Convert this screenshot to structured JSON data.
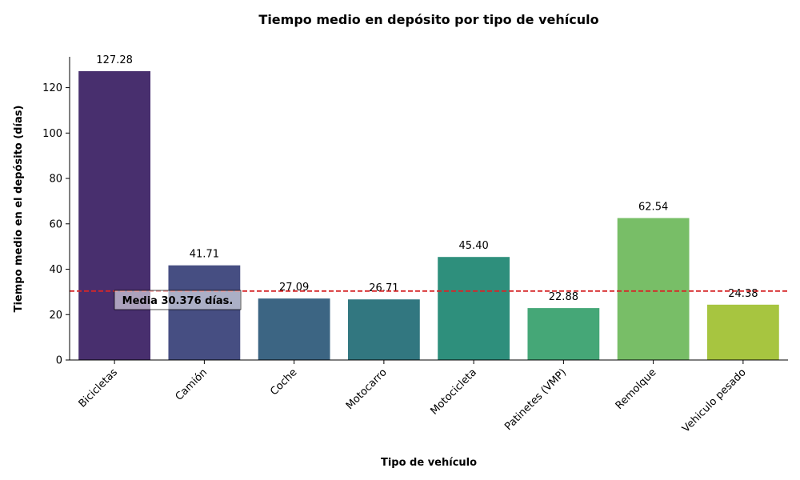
{
  "chart_data": {
    "type": "bar",
    "title": "Tiempo medio en depósito por tipo de vehículo",
    "xlabel": "Tipo de vehículo",
    "ylabel": "Tiempo medio en el depósito (días)",
    "categories": [
      "Bicicletas",
      "Camión",
      "Coche",
      "Motocarro",
      "Motocicleta",
      "Patinetes (VMP)",
      "Remolque",
      "Vehiculo pesado"
    ],
    "values": [
      127.28,
      41.71,
      27.09,
      26.71,
      45.4,
      22.88,
      62.54,
      24.38
    ],
    "value_labels": [
      "127.28",
      "41.71",
      "27.09",
      "26.71",
      "45.40",
      "22.88",
      "62.54",
      "24.38"
    ],
    "bar_colors": [
      "#482f6e",
      "#464e82",
      "#3c6583",
      "#327780",
      "#2e8f7c",
      "#45a777",
      "#78be67",
      "#a7c540"
    ],
    "ylim": [
      0,
      133.6
    ],
    "yticks": [
      0,
      20,
      40,
      60,
      80,
      100,
      120
    ],
    "grid": false,
    "mean": {
      "value": 30.376,
      "label": "Media 30.376 días.",
      "line_color": "#d62728"
    }
  }
}
